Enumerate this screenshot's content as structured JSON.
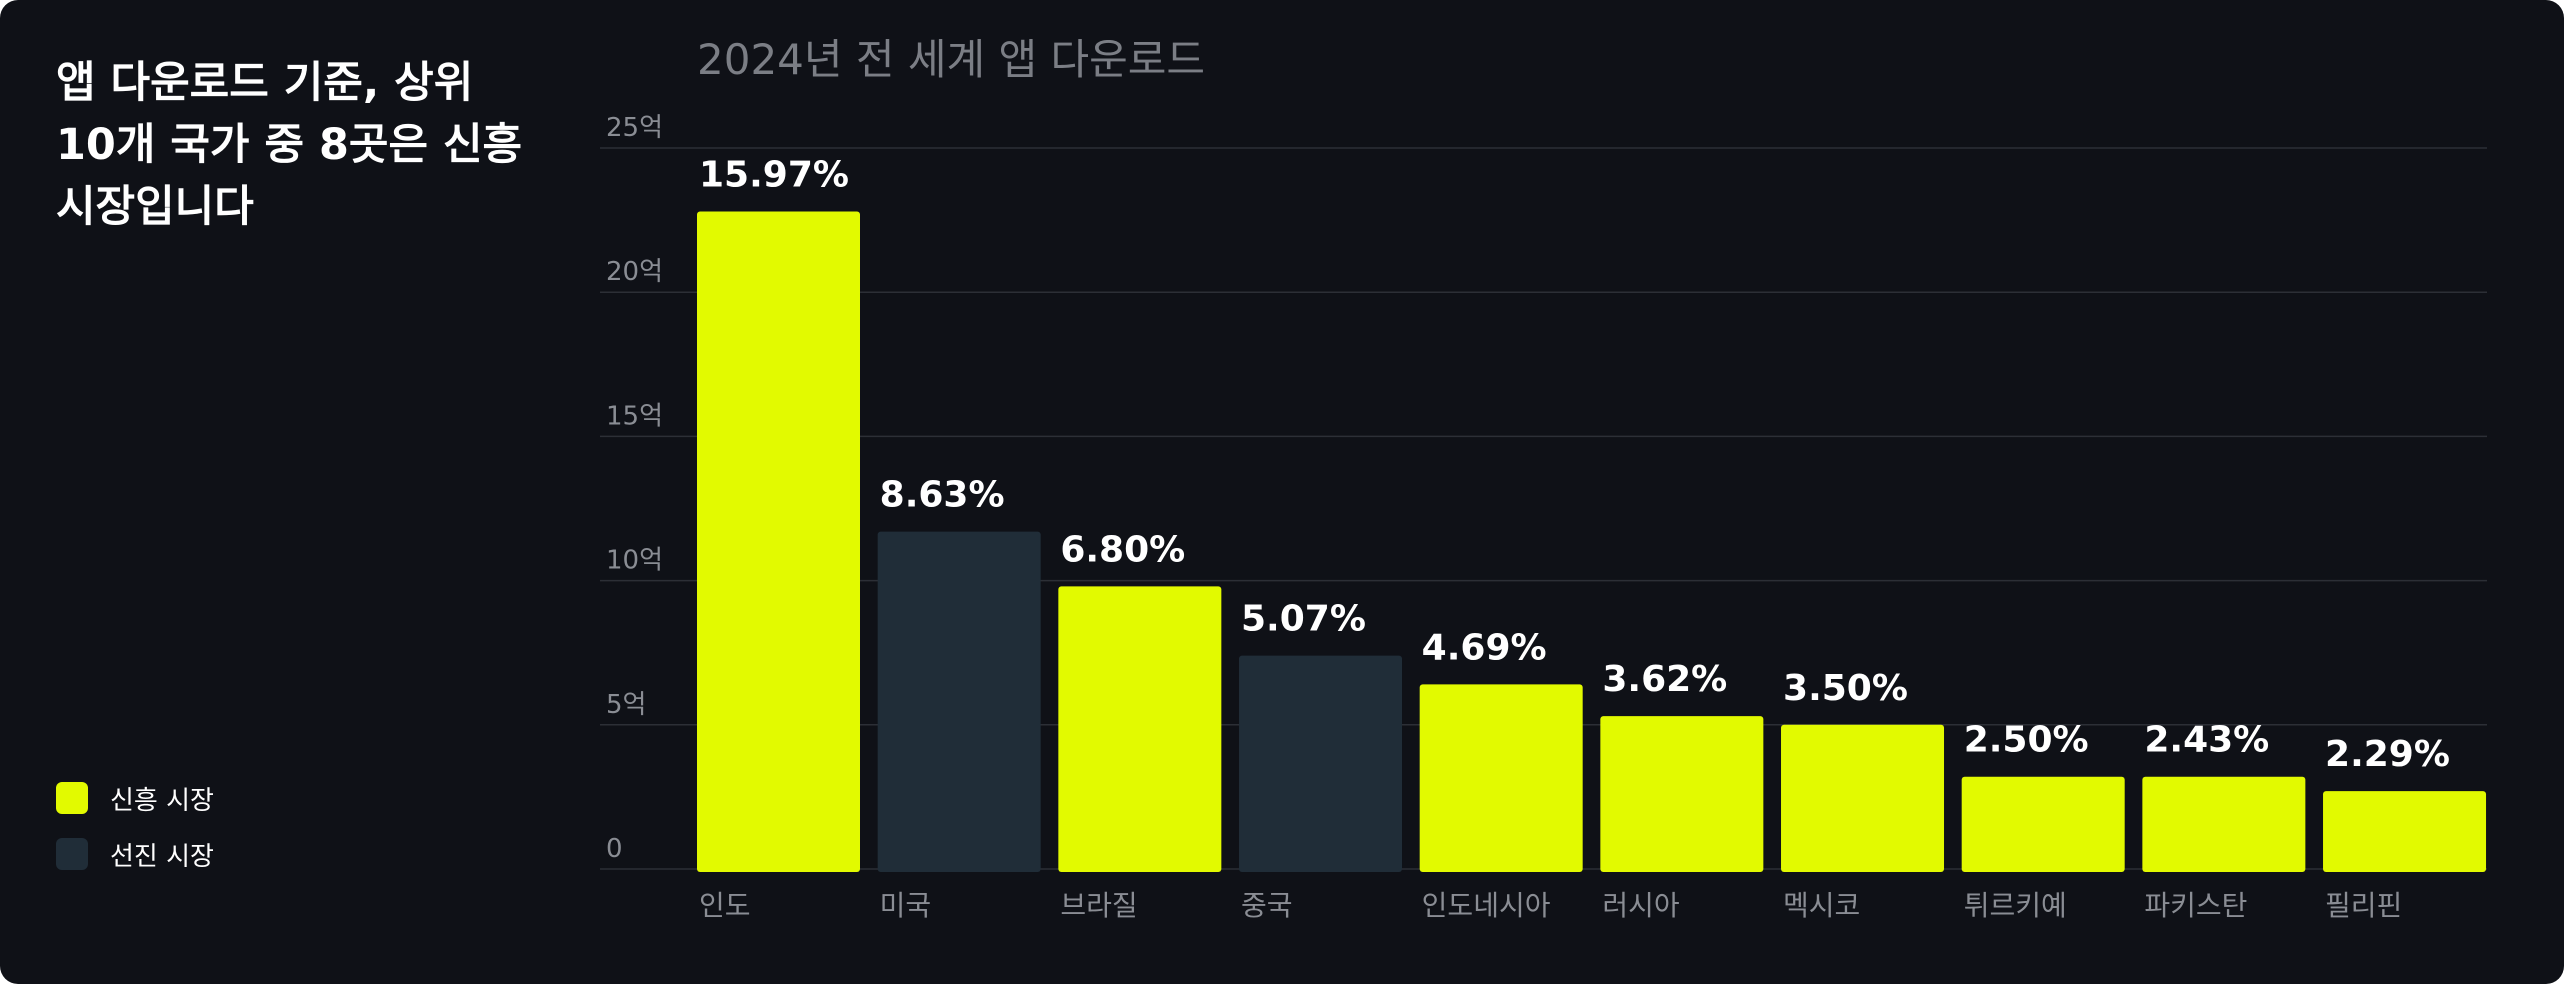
{
  "headline": "앱 다운로드 기준, 상위\n10개 국가 중 8곳은 신흥\n시장입니다",
  "legend": [
    {
      "label": "신흥 시장",
      "color": "#e2fa00"
    },
    {
      "label": "선진 시장",
      "color": "#202d38"
    }
  ],
  "chart_data": {
    "type": "bar",
    "title": "2024년 전 세계 앱 다운로드",
    "xlabel": "",
    "ylabel": "",
    "ylim": [
      0,
      25
    ],
    "yticks": [
      0,
      5,
      10,
      15,
      20,
      25
    ],
    "ytick_labels": [
      "0",
      "5억",
      "10억",
      "15억",
      "20억",
      "25억"
    ],
    "grid": true,
    "legend_position": "bottom-left",
    "categories": [
      "인도",
      "미국",
      "브라질",
      "중국",
      "인도네시아",
      "러시아",
      "멕시코",
      "튀르키예",
      "파키스탄",
      "필리핀"
    ],
    "values": [
      22.8,
      11.7,
      9.8,
      7.4,
      6.4,
      5.3,
      5.0,
      3.2,
      3.2,
      2.7
    ],
    "value_unit": "억",
    "data_labels": [
      "15.97%",
      "8.63%",
      "6.80%",
      "5.07%",
      "4.69%",
      "3.62%",
      "3.50%",
      "2.50%",
      "2.43%",
      "2.29%"
    ],
    "market_type": [
      "신흥 시장",
      "선진 시장",
      "신흥 시장",
      "선진 시장",
      "신흥 시장",
      "신흥 시장",
      "신흥 시장",
      "신흥 시장",
      "신흥 시장",
      "신흥 시장"
    ],
    "colors": {
      "신흥 시장": "#e2fa00",
      "선진 시장": "#202d38"
    }
  }
}
